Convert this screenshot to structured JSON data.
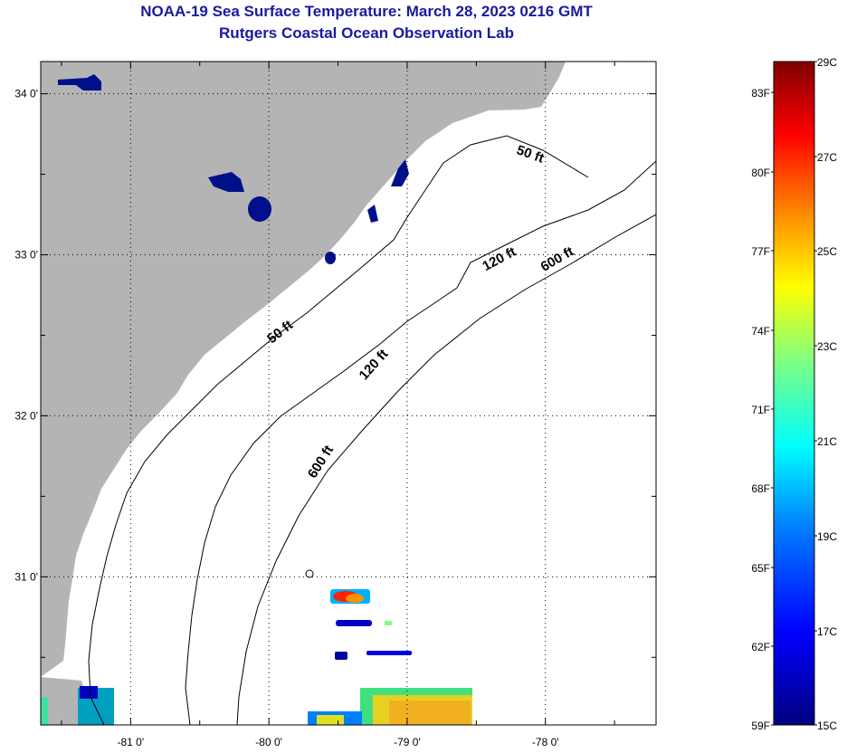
{
  "title": {
    "line1": "NOAA-19 Sea Surface Temperature:  March 28, 2023 0216 GMT",
    "line2": "Rutgers Coastal Ocean Observation Lab"
  },
  "map": {
    "lon_range": [
      -81.65,
      -77.2
    ],
    "lat_range": [
      30.08,
      34.2
    ],
    "x_ticks": [
      {
        "lon": -81,
        "label": "-81 0'"
      },
      {
        "lon": -80,
        "label": "-80 0'"
      },
      {
        "lon": -79,
        "label": "-79 0'"
      },
      {
        "lon": -78,
        "label": "-78 0'"
      }
    ],
    "y_ticks": [
      {
        "lat": 34,
        "label": "34 0'"
      },
      {
        "lat": 33,
        "label": "33 0'"
      },
      {
        "lat": 32,
        "label": "32 0'"
      },
      {
        "lat": 31,
        "label": "31 0'"
      }
    ],
    "contour_labels": [
      {
        "text": "50 ft",
        "lon": -78.12,
        "lat": 33.6,
        "angle": 20
      },
      {
        "text": "120 ft",
        "lon": -78.32,
        "lat": 32.95,
        "angle": -28
      },
      {
        "text": "600 ft",
        "lon": -77.9,
        "lat": 32.95,
        "angle": -30
      },
      {
        "text": "50 ft",
        "lon": -79.9,
        "lat": 32.5,
        "angle": -38
      },
      {
        "text": "120 ft",
        "lon": -79.22,
        "lat": 32.3,
        "angle": -48
      },
      {
        "text": "600 ft",
        "lon": -79.6,
        "lat": 31.7,
        "angle": -58
      }
    ]
  },
  "colorbar": {
    "fahrenheit_labels": [
      "83F",
      "80F",
      "77F",
      "74F",
      "71F",
      "68F",
      "65F",
      "62F",
      "59F"
    ],
    "celsius_labels": [
      "29C",
      "27C",
      "25C",
      "23C",
      "21C",
      "19C",
      "17C",
      "15C"
    ],
    "colors": [
      "#000080",
      "#0000ff",
      "#0080ff",
      "#00ffff",
      "#80ff80",
      "#ffff00",
      "#ff8000",
      "#ff0000",
      "#800000"
    ]
  },
  "colors": {
    "land": "#b4b4b4",
    "ocean": "#ffffff",
    "title": "#1a1aa0",
    "lake": "#00108a"
  }
}
